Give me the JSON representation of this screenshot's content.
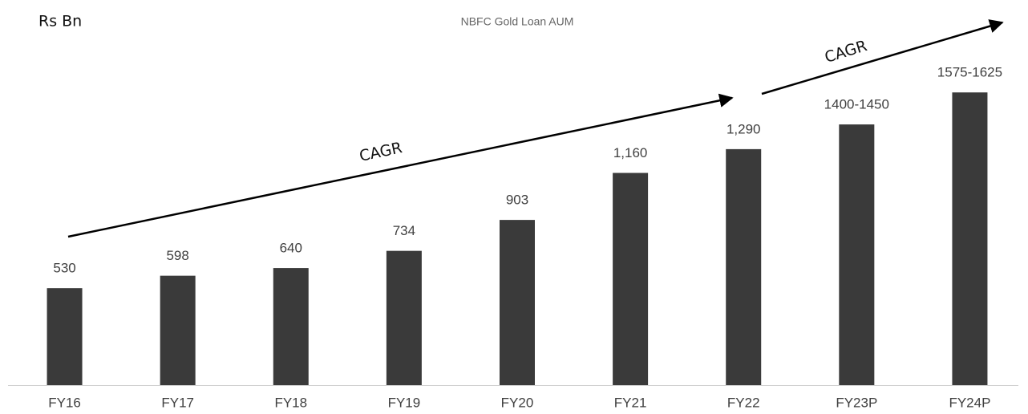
{
  "chart_data": {
    "type": "bar",
    "title": "NBFC Gold Loan AUM",
    "unit_label": "Rs Bn",
    "annotations": [
      "CAGR",
      "CAGR"
    ],
    "categories": [
      "FY16",
      "FY17",
      "FY18",
      "FY19",
      "FY20",
      "FY21",
      "FY22",
      "FY23P",
      "FY24P"
    ],
    "values": [
      530,
      598,
      640,
      734,
      903,
      1160,
      1290,
      1425,
      1600
    ],
    "value_labels": [
      "530",
      "598",
      "640",
      "734",
      "903",
      "1,160",
      "1,290",
      "1400-1450",
      "1575-1625"
    ],
    "color": "#3a3a3a",
    "ylim": [
      0,
      2000
    ],
    "grid": false
  }
}
